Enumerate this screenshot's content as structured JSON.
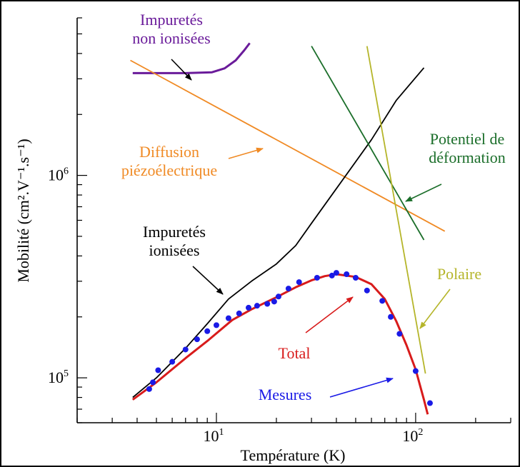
{
  "chart_data": {
    "type": "line",
    "xscale": "log",
    "yscale": "log",
    "xlim": [
      2,
      300
    ],
    "ylim": [
      60000,
      6000000
    ],
    "xlabel": "Température (K)",
    "ylabel": "Mobilité (cm².V⁻¹.s⁻¹)",
    "xticks": [
      {
        "base": "10",
        "exp": "1"
      },
      {
        "base": "10",
        "exp": "2"
      }
    ],
    "yticks": [
      {
        "base": "10",
        "exp": "5"
      },
      {
        "base": "10",
        "exp": "6"
      }
    ],
    "series": [
      {
        "name": "Impuretés non ionisées",
        "color": "#6a1b9a",
        "x": [
          3.8,
          5,
          7,
          9.5,
          11,
          12.5,
          13.8,
          14.7
        ],
        "y": [
          3200000,
          3200000,
          3200000,
          3230000,
          3380000,
          3700000,
          4150000,
          4500000
        ]
      },
      {
        "name": "Diffusion piézoélectrique",
        "color": "#f08a24",
        "x": [
          3.7,
          140
        ],
        "y": [
          3700000,
          530000
        ]
      },
      {
        "name": "Impuretés ionisées",
        "color": "#000000",
        "x": [
          3.8,
          5,
          7,
          9,
          11.5,
          15,
          20,
          25,
          30,
          40,
          60,
          80,
          110
        ],
        "y": [
          80000,
          100000,
          140000,
          185000,
          245000,
          300000,
          365000,
          450000,
          580000,
          860000,
          1500000,
          2350000,
          3400000
        ]
      },
      {
        "name": "Potentiel de déformation",
        "color": "#1b6e2a",
        "x": [
          30,
          110
        ],
        "y": [
          4350000,
          480000
        ]
      },
      {
        "name": "Polaire",
        "color": "#b5b52a",
        "x": [
          57,
          112
        ],
        "y": [
          4350000,
          105000
        ]
      },
      {
        "name": "Total",
        "color": "#d81b1b",
        "x": [
          3.8,
          5,
          7,
          9,
          12,
          15,
          20,
          25,
          30,
          35,
          40,
          50,
          60,
          70,
          80,
          90,
          100,
          110,
          115
        ],
        "y": [
          78000,
          95000,
          125000,
          152000,
          193000,
          218000,
          250000,
          280000,
          303000,
          318000,
          325000,
          315000,
          290000,
          245000,
          190000,
          145000,
          110000,
          78000,
          66000
        ]
      }
    ],
    "scatter": {
      "name": "Mesures",
      "color": "#1a1ae6",
      "x": [
        4.6,
        4.8,
        5.1,
        6,
        7,
        8,
        9,
        10,
        11.5,
        13,
        14.5,
        16,
        18,
        19.5,
        20.5,
        23,
        26,
        32,
        38,
        40,
        45,
        50,
        57,
        68,
        75,
        83,
        100,
        118
      ],
      "y": [
        88000,
        95000,
        109000,
        120000,
        138000,
        155000,
        170000,
        182000,
        197000,
        208000,
        222000,
        227000,
        232000,
        238000,
        252000,
        276000,
        297000,
        312000,
        320000,
        330000,
        325000,
        312000,
        270000,
        240000,
        200000,
        165000,
        108000,
        75000
      ]
    },
    "annotations": [
      {
        "lines": [
          "Impuretés",
          "non ionisées"
        ],
        "color": "#6a1b9a"
      },
      {
        "lines": [
          "Diffusion",
          "piézoélectrique"
        ],
        "color": "#f08a24"
      },
      {
        "lines": [
          "Impuretés",
          "ionisées"
        ],
        "color": "#000000"
      },
      {
        "lines": [
          "Potentiel de",
          "déformation"
        ],
        "color": "#1b6e2a"
      },
      {
        "lines": [
          "Polaire"
        ],
        "color": "#b5b52a"
      },
      {
        "lines": [
          "Total"
        ],
        "color": "#d81b1b"
      },
      {
        "lines": [
          "Mesures"
        ],
        "color": "#1a1ae6"
      }
    ]
  }
}
